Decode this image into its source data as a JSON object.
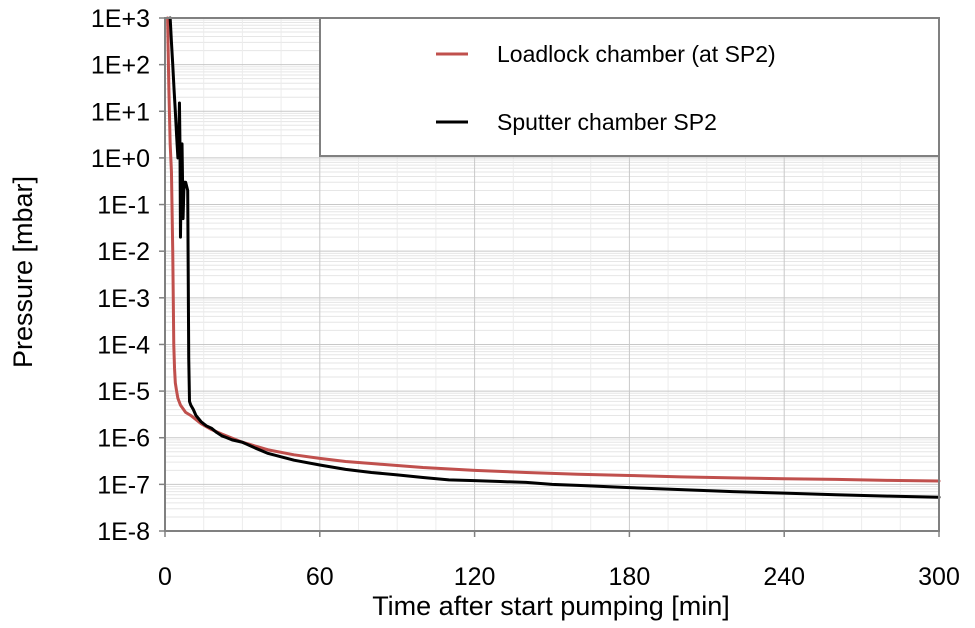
{
  "chart_data": {
    "type": "line",
    "title": "",
    "xlabel": "Time after start pumping [min]",
    "ylabel": "Pressure [mbar]",
    "xlim": [
      0,
      300
    ],
    "ylim": [
      1e-08,
      1000
    ],
    "y_scale": "log",
    "grid": true,
    "legend_position": "top-right",
    "x_ticks": [
      "0",
      "60",
      "120",
      "180",
      "240",
      "300"
    ],
    "y_ticks": [
      "1E-8",
      "1E-7",
      "1E-6",
      "1E-5",
      "1E-4",
      "1E-3",
      "1E-2",
      "1E-1",
      "1E+0",
      "1E+1",
      "1E+2",
      "1E+3"
    ],
    "series": [
      {
        "name": "Loadlock chamber (at SP2)",
        "color": "#c0504d",
        "x": [
          1.0,
          1.5,
          2.0,
          2.5,
          3.0,
          3.2,
          3.4,
          3.7,
          4.0,
          4.5,
          5.0,
          6.0,
          8.0,
          10,
          14,
          18,
          22,
          30,
          40,
          50,
          60,
          70,
          80,
          100,
          120,
          140,
          160,
          180,
          200,
          220,
          240,
          260,
          280,
          300
        ],
        "y": [
          1000,
          30,
          2,
          0.5,
          0.01,
          0.001,
          0.0001,
          3e-05,
          1.5e-05,
          1e-05,
          7e-06,
          5e-06,
          3.5e-06,
          3e-06,
          2e-06,
          1.5e-06,
          1.2e-06,
          8e-07,
          5.5e-07,
          4.3e-07,
          3.6e-07,
          3.1e-07,
          2.8e-07,
          2.3e-07,
          2e-07,
          1.8e-07,
          1.65e-07,
          1.55e-07,
          1.45e-07,
          1.38e-07,
          1.32e-07,
          1.28e-07,
          1.22e-07,
          1.18e-07
        ]
      },
      {
        "name": "Sputter chamber SP2",
        "color": "#000000",
        "x": [
          2.0,
          2.5,
          3.0,
          3.5,
          4.0,
          4.5,
          5.0,
          5.3,
          5.6,
          5.8,
          6.0,
          6.3,
          6.6,
          7.0,
          7.4,
          8.0,
          8.8,
          9.2,
          9.5,
          10,
          11,
          12,
          14,
          16,
          18,
          20,
          22,
          24,
          26,
          30,
          35,
          40,
          50,
          60,
          70,
          80,
          90,
          100,
          110,
          120,
          130,
          140,
          150,
          160,
          170,
          180,
          200,
          220,
          240,
          260,
          280,
          300
        ],
        "y": [
          1000,
          300,
          100,
          30,
          10,
          3,
          1,
          1.5,
          15,
          2,
          0.02,
          0.5,
          2,
          0.05,
          0.3,
          0.3,
          0.2,
          5e-05,
          6e-06,
          5e-06,
          4e-06,
          3e-06,
          2.2e-06,
          1.8e-06,
          1.6e-06,
          1.3e-06,
          1.1e-06,
          1e-06,
          9e-07,
          8e-07,
          6e-07,
          4.6e-07,
          3.3e-07,
          2.6e-07,
          2.1e-07,
          1.8e-07,
          1.6e-07,
          1.4e-07,
          1.25e-07,
          1.2e-07,
          1.15e-07,
          1.1e-07,
          1e-07,
          9.5e-08,
          9e-08,
          8.5e-08,
          7.7e-08,
          7e-08,
          6.5e-08,
          6e-08,
          5.6e-08,
          5.3e-08
        ]
      }
    ]
  }
}
